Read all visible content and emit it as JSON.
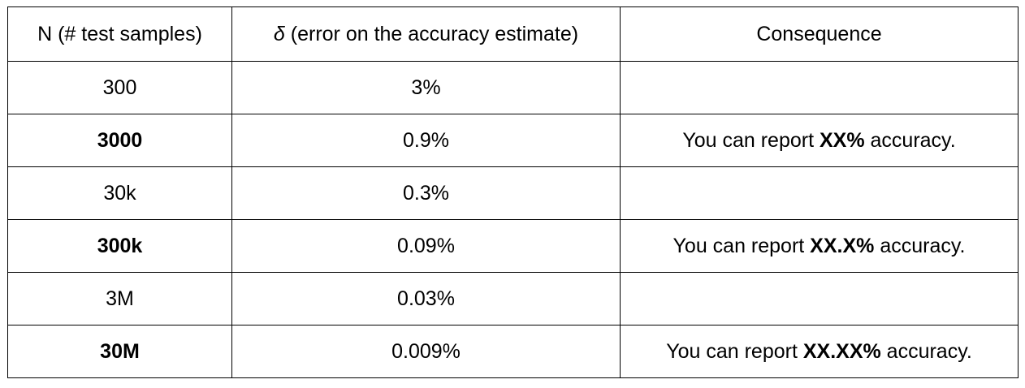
{
  "table": {
    "headers": {
      "n": "N (# test samples)",
      "delta_symbol": "δ",
      "delta_rest": " (error on the accuracy estimate)",
      "consequence": "Consequence"
    },
    "rows": [
      {
        "n": "300",
        "n_bold": false,
        "delta": "3%",
        "consequence": null
      },
      {
        "n": "3000",
        "n_bold": true,
        "delta": "0.9%",
        "consequence": {
          "prefix": "You can report ",
          "format": "XX%",
          "suffix": " accuracy."
        }
      },
      {
        "n": "30k",
        "n_bold": false,
        "delta": "0.3%",
        "consequence": null
      },
      {
        "n": "300k",
        "n_bold": true,
        "delta": "0.09%",
        "consequence": {
          "prefix": "You can report ",
          "format": "XX.X%",
          "suffix": " accuracy."
        }
      },
      {
        "n": "3M",
        "n_bold": false,
        "delta": "0.03%",
        "consequence": null
      },
      {
        "n": "30M",
        "n_bold": true,
        "delta": "0.009%",
        "consequence": {
          "prefix": "You can report ",
          "format": "XX.XX%",
          "suffix": " accuracy."
        }
      }
    ]
  }
}
